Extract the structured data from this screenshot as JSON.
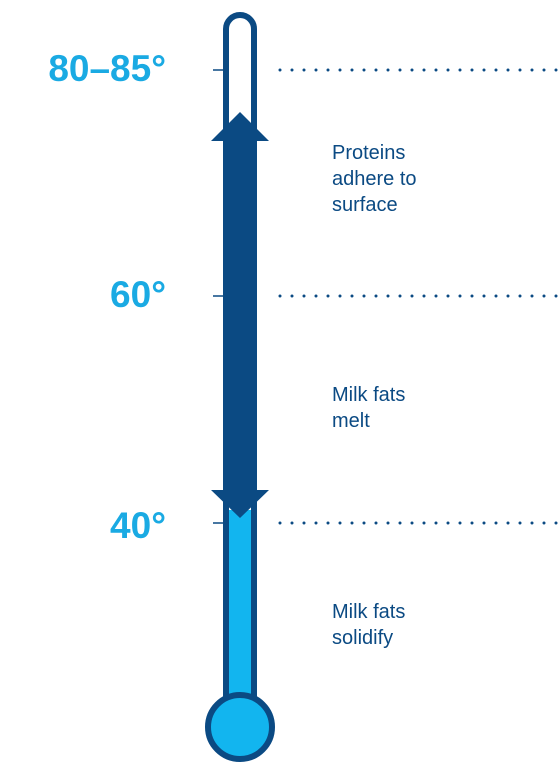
{
  "colors": {
    "accent": "#1AAAE3",
    "dark": "#0B4A83",
    "light_fill": "#12B5EF"
  },
  "temperature_marks": [
    {
      "label": "80–85°"
    },
    {
      "label": "60°"
    },
    {
      "label": "40°"
    }
  ],
  "phases": [
    {
      "label": "Proteins\nadhere to\nsurface"
    },
    {
      "label": "Milk fats\nmelt"
    },
    {
      "label": "Milk fats\nsolidify"
    }
  ]
}
